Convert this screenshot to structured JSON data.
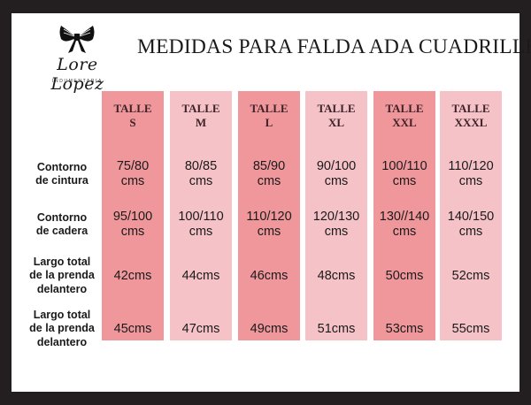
{
  "logo": {
    "name": "Lore Lopez",
    "subtitle": "INDUMENTARIA"
  },
  "title": "MEDIDAS PARA FALDA ADA CUADRILLE",
  "colors": {
    "dark_column": "#f0979c",
    "light_column": "#f5c3c7",
    "border": "#231f20"
  },
  "row_labels": [
    [
      "Contorno",
      "de cintura"
    ],
    [
      "Contorno",
      "de cadera"
    ],
    [
      "Largo total",
      "de la prenda",
      "delantero"
    ],
    [
      "Largo total",
      "de la prenda",
      "delantero"
    ]
  ],
  "sizes": [
    {
      "header": [
        "TALLE",
        "S"
      ],
      "values": [
        [
          "75/80",
          "cms"
        ],
        [
          "95/100",
          "cms"
        ],
        [
          "42cms"
        ],
        [
          "45cms"
        ]
      ]
    },
    {
      "header": [
        "TALLE",
        "M"
      ],
      "values": [
        [
          "80/85",
          "cms"
        ],
        [
          "100/110",
          "cms"
        ],
        [
          "44cms"
        ],
        [
          "47cms"
        ]
      ]
    },
    {
      "header": [
        "TALLE",
        "L"
      ],
      "values": [
        [
          "85/90",
          "cms"
        ],
        [
          "110/120",
          "cms"
        ],
        [
          "46cms"
        ],
        [
          "49cms"
        ]
      ]
    },
    {
      "header": [
        "TALLE",
        "XL"
      ],
      "values": [
        [
          "90/100",
          "cms"
        ],
        [
          "120/130",
          "cms"
        ],
        [
          "48cms"
        ],
        [
          "51cms"
        ]
      ]
    },
    {
      "header": [
        "TALLE",
        "XXL"
      ],
      "values": [
        [
          "100/110",
          "cms"
        ],
        [
          "130//140",
          "cms"
        ],
        [
          "50cms"
        ],
        [
          "53cms"
        ]
      ]
    },
    {
      "header": [
        "TALLE",
        "XXXL"
      ],
      "values": [
        [
          "110/120",
          "cms"
        ],
        [
          "140/150",
          "cms"
        ],
        [
          "52cms"
        ],
        [
          "55cms"
        ]
      ]
    }
  ]
}
